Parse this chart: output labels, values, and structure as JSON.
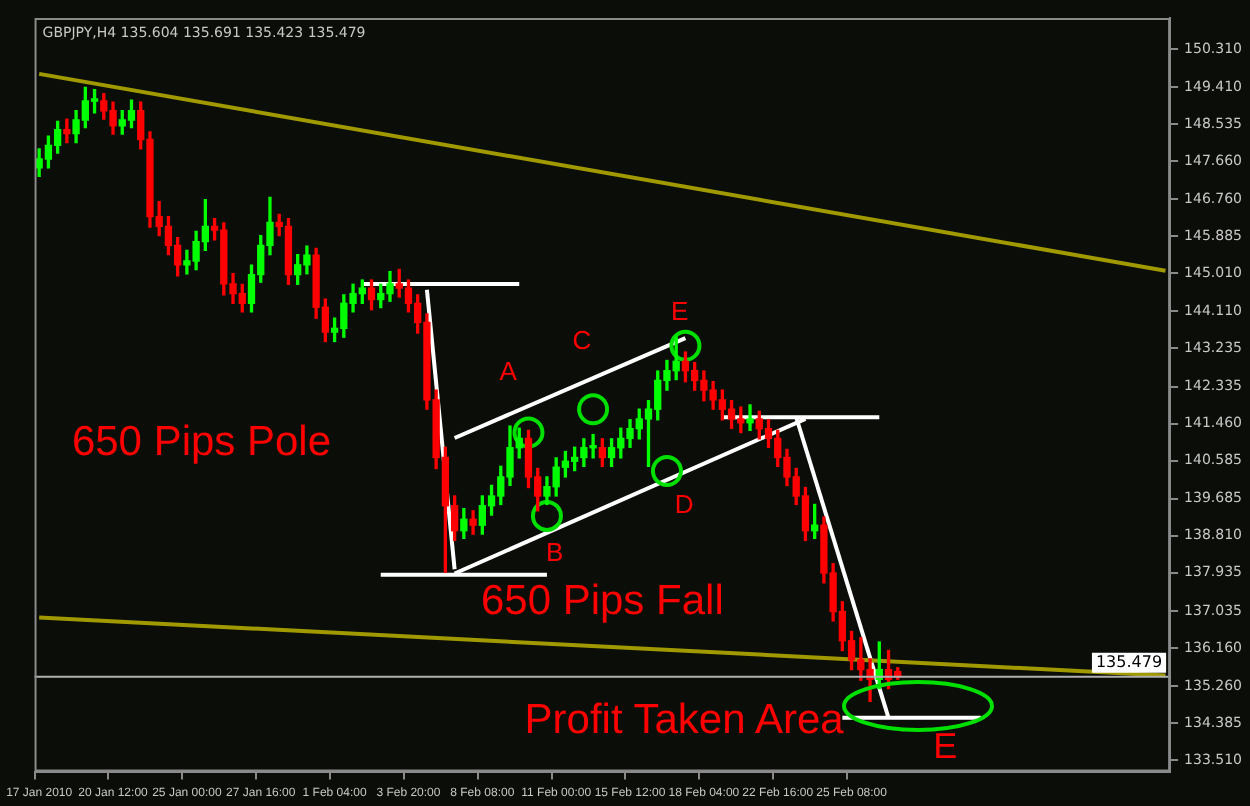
{
  "chart_data": {
    "type": "candlestick",
    "title": "GBPJPY,H4 135.604 135.691 135.423 135.479",
    "categories": [
      "17 Jan 2010",
      null,
      null,
      null,
      null,
      null,
      null,
      null,
      "20 Jan 12:00",
      null,
      null,
      null,
      null,
      null,
      null,
      null,
      "25 Jan 00:00",
      null,
      null,
      null,
      null,
      null,
      null,
      null,
      "27 Jan 16:00",
      null,
      null,
      null,
      null,
      null,
      null,
      null,
      "1 Feb 04:00",
      null,
      null,
      null,
      null,
      null,
      null,
      null,
      "3 Feb 20:00",
      null,
      null,
      null,
      null,
      null,
      null,
      null,
      "8 Feb 08:00",
      null,
      null,
      null,
      null,
      null,
      null,
      null,
      "11 Feb 00:00",
      null,
      null,
      null,
      null,
      null,
      null,
      null,
      "15 Feb 12:00",
      null,
      null,
      null,
      null,
      null,
      null,
      null,
      "18 Feb 04:00",
      null,
      null,
      null,
      null,
      null,
      null,
      null,
      "22 Feb 16:00",
      null,
      null,
      null,
      null,
      null,
      null,
      null,
      "25 Feb 08:00",
      null,
      null,
      null,
      null,
      null,
      null,
      null,
      null,
      null,
      null,
      null,
      null,
      null,
      null,
      null,
      null,
      null,
      null,
      null,
      null,
      null,
      null,
      null,
      null,
      null,
      null,
      null,
      null,
      null,
      null,
      null,
      null,
      null,
      null
    ],
    "ohlc": [
      [
        147.5,
        147.95,
        147.3,
        147.71
      ],
      [
        147.71,
        148.25,
        147.5,
        148.03
      ],
      [
        148.03,
        148.6,
        147.85,
        148.4
      ],
      [
        148.4,
        148.65,
        148.1,
        148.31
      ],
      [
        148.31,
        148.85,
        148.1,
        148.63
      ],
      [
        148.63,
        149.4,
        148.45,
        149.08
      ],
      [
        149.08,
        149.35,
        148.8,
        149.08
      ],
      [
        149.08,
        149.25,
        148.65,
        148.85
      ],
      [
        148.85,
        149.05,
        148.3,
        148.49
      ],
      [
        148.49,
        148.85,
        148.3,
        148.63
      ],
      [
        148.63,
        149.1,
        148.45,
        148.85
      ],
      [
        148.85,
        149.05,
        147.95,
        148.17
      ],
      [
        148.17,
        148.35,
        146.1,
        146.35
      ],
      [
        146.35,
        146.7,
        145.9,
        146.12
      ],
      [
        146.12,
        146.35,
        145.45,
        145.67
      ],
      [
        145.67,
        145.85,
        144.95,
        145.21
      ],
      [
        145.21,
        145.55,
        145.0,
        145.3
      ],
      [
        145.3,
        146.0,
        145.1,
        145.76
      ],
      [
        145.76,
        146.75,
        145.55,
        146.12
      ],
      [
        146.12,
        146.3,
        145.8,
        146.03
      ],
      [
        146.03,
        146.2,
        144.5,
        144.76
      ],
      [
        144.76,
        145.0,
        144.3,
        144.53
      ],
      [
        144.53,
        144.75,
        144.1,
        144.3
      ],
      [
        144.3,
        145.2,
        144.1,
        144.98
      ],
      [
        144.98,
        145.9,
        144.8,
        145.67
      ],
      [
        145.67,
        146.8,
        145.45,
        146.21
      ],
      [
        146.21,
        146.4,
        145.9,
        146.12
      ],
      [
        146.12,
        146.3,
        144.75,
        144.98
      ],
      [
        144.98,
        145.45,
        144.75,
        145.21
      ],
      [
        145.21,
        145.65,
        145.0,
        145.44
      ],
      [
        145.44,
        145.6,
        143.95,
        144.21
      ],
      [
        144.21,
        144.4,
        143.4,
        143.62
      ],
      [
        143.62,
        143.95,
        143.4,
        143.71
      ],
      [
        143.71,
        144.5,
        143.5,
        144.3
      ],
      [
        144.3,
        144.75,
        144.1,
        144.53
      ],
      [
        144.53,
        144.85,
        144.3,
        144.66
      ],
      [
        144.66,
        144.85,
        144.15,
        144.39
      ],
      [
        144.39,
        144.75,
        144.2,
        144.53
      ],
      [
        144.53,
        145.05,
        144.35,
        144.76
      ],
      [
        144.76,
        145.1,
        144.45,
        144.66
      ],
      [
        144.66,
        144.85,
        144.1,
        144.3
      ],
      [
        144.3,
        144.5,
        143.6,
        143.85
      ],
      [
        143.85,
        144.05,
        141.8,
        142.02
      ],
      [
        142.02,
        142.25,
        140.4,
        140.66
      ],
      [
        140.66,
        140.9,
        137.95,
        139.52
      ],
      [
        139.52,
        139.75,
        138.7,
        138.93
      ],
      [
        138.93,
        139.45,
        138.75,
        139.2
      ],
      [
        139.2,
        139.4,
        138.85,
        139.06
      ],
      [
        139.06,
        139.75,
        138.85,
        139.52
      ],
      [
        139.52,
        140.0,
        139.3,
        139.75
      ],
      [
        139.75,
        140.45,
        139.55,
        140.2
      ],
      [
        140.2,
        141.4,
        140.0,
        140.89
      ],
      [
        140.89,
        141.35,
        140.65,
        141.11
      ],
      [
        141.11,
        141.3,
        139.95,
        140.2
      ],
      [
        140.2,
        140.4,
        139.4,
        139.75
      ],
      [
        139.75,
        140.2,
        139.55,
        139.97
      ],
      [
        139.97,
        140.65,
        139.75,
        140.43
      ],
      [
        140.43,
        140.8,
        140.2,
        140.57
      ],
      [
        140.57,
        140.9,
        140.35,
        140.66
      ],
      [
        140.66,
        141.1,
        140.45,
        140.89
      ],
      [
        140.89,
        141.2,
        140.65,
        140.89
      ],
      [
        140.89,
        141.1,
        140.45,
        140.66
      ],
      [
        140.66,
        141.1,
        140.45,
        140.89
      ],
      [
        140.89,
        141.35,
        140.65,
        141.11
      ],
      [
        141.11,
        141.55,
        140.9,
        141.34
      ],
      [
        141.34,
        141.8,
        141.1,
        141.57
      ],
      [
        141.57,
        142.0,
        140.45,
        141.8
      ],
      [
        141.8,
        142.7,
        141.55,
        142.48
      ],
      [
        142.48,
        142.95,
        142.25,
        142.71
      ],
      [
        142.71,
        143.5,
        142.5,
        142.93
      ],
      [
        142.93,
        143.15,
        142.45,
        142.71
      ],
      [
        142.71,
        142.9,
        142.25,
        142.48
      ],
      [
        142.48,
        142.7,
        142.0,
        142.25
      ],
      [
        142.25,
        142.45,
        141.8,
        142.02
      ],
      [
        142.02,
        142.25,
        141.55,
        141.8
      ],
      [
        141.8,
        142.0,
        141.35,
        141.57
      ],
      [
        141.57,
        141.85,
        141.25,
        141.48
      ],
      [
        141.48,
        141.9,
        141.3,
        141.57
      ],
      [
        141.57,
        141.75,
        141.1,
        141.34
      ],
      [
        141.34,
        141.55,
        140.9,
        141.11
      ],
      [
        141.11,
        141.3,
        140.45,
        140.66
      ],
      [
        140.66,
        140.85,
        140.0,
        140.2
      ],
      [
        140.2,
        140.4,
        139.55,
        139.75
      ],
      [
        139.75,
        139.95,
        138.7,
        138.93
      ],
      [
        138.93,
        139.55,
        138.75,
        139.06
      ],
      [
        139.06,
        139.25,
        137.7,
        137.93
      ],
      [
        137.93,
        138.15,
        136.8,
        137.02
      ],
      [
        137.02,
        137.25,
        136.1,
        136.33
      ],
      [
        136.33,
        136.55,
        135.65,
        135.88
      ],
      [
        135.88,
        136.4,
        135.4,
        135.65
      ],
      [
        135.65,
        135.9,
        134.9,
        135.42
      ],
      [
        135.42,
        136.3,
        135.2,
        135.65
      ],
      [
        135.65,
        136.1,
        135.2,
        135.42
      ],
      [
        135.604,
        135.691,
        135.423,
        135.479
      ],
      null,
      null,
      null,
      null,
      null,
      null,
      null,
      null,
      null,
      null,
      null,
      null,
      null,
      null,
      null,
      null,
      null,
      null,
      null,
      null,
      null,
      null,
      null,
      null,
      null,
      null,
      null,
      null,
      null
    ],
    "colors": [
      "#00ff00",
      "#00ff00",
      "#00ff00",
      "#ff0000",
      "#00ff00",
      "#00ff00",
      "#00ff00",
      "#ff0000",
      "#ff0000",
      "#00ff00",
      "#00ff00",
      "#ff0000",
      "#ff0000",
      "#ff0000",
      "#ff0000",
      "#ff0000",
      "#00ff00",
      "#00ff00",
      "#00ff00",
      "#ff0000",
      "#ff0000",
      "#ff0000",
      "#ff0000",
      "#00ff00",
      "#00ff00",
      "#00ff00",
      "#ff0000",
      "#ff0000",
      "#00ff00",
      "#00ff00",
      "#ff0000",
      "#ff0000",
      "#00ff00",
      "#00ff00",
      "#00ff00",
      "#00ff00",
      "#ff0000",
      "#00ff00",
      "#00ff00",
      "#ff0000",
      "#ff0000",
      "#ff0000",
      "#ff0000",
      "#ff0000",
      "#ff0000",
      "#ff0000",
      "#00ff00",
      "#ff0000",
      "#00ff00",
      "#00ff00",
      "#00ff00",
      "#00ff00",
      "#00ff00",
      "#ff0000",
      "#ff0000",
      "#00ff00",
      "#00ff00",
      "#00ff00",
      "#00ff00",
      "#00ff00",
      "#00ff00",
      "#ff0000",
      "#00ff00",
      "#00ff00",
      "#00ff00",
      "#00ff00",
      "#00ff00",
      "#00ff00",
      "#00ff00",
      "#00ff00",
      "#ff0000",
      "#ff0000",
      "#ff0000",
      "#ff0000",
      "#ff0000",
      "#ff0000",
      "#ff0000",
      "#00ff00",
      "#ff0000",
      "#ff0000",
      "#ff0000",
      "#ff0000",
      "#ff0000",
      "#ff0000",
      "#00ff00",
      "#ff0000",
      "#ff0000",
      "#ff0000",
      "#ff0000",
      "#ff0000",
      "#ff0000",
      "#00ff00",
      "#ff0000",
      "#ff0000",
      null,
      null,
      null,
      null,
      null,
      null,
      null,
      null,
      null,
      null,
      null,
      null,
      null,
      null,
      null,
      null,
      null,
      null,
      null,
      null,
      null,
      null,
      null,
      null,
      null,
      null,
      null,
      null,
      null
    ],
    "series": [
      {
        "type": "line",
        "color": "#a09a00",
        "values": [
          149.72,
          null,
          null,
          null,
          null,
          null,
          null,
          null,
          null,
          null,
          null,
          null,
          null,
          null,
          null,
          null,
          null,
          null,
          null,
          null,
          null,
          null,
          null,
          null,
          null,
          null,
          null,
          null,
          null,
          null,
          null,
          null,
          null,
          null,
          null,
          null,
          null,
          null,
          null,
          null,
          null,
          null,
          null,
          null,
          null,
          null,
          null,
          null,
          null,
          null,
          null,
          null,
          null,
          null,
          null,
          null,
          null,
          null,
          null,
          null,
          null,
          null,
          null,
          null,
          null,
          null,
          null,
          null,
          null,
          null,
          null,
          null,
          null,
          null,
          null,
          null,
          null,
          null,
          null,
          null,
          null,
          null,
          null,
          null,
          null,
          null,
          null,
          null,
          null,
          null,
          null,
          null,
          null,
          null,
          null,
          null,
          null,
          null,
          null,
          null,
          null,
          null,
          null,
          null,
          null,
          null,
          null,
          null,
          null,
          null,
          null,
          null,
          null,
          null,
          null,
          null,
          null,
          null,
          null,
          null,
          null,
          null,
          145.07
        ]
      },
      {
        "type": "line",
        "color": "#a09a00",
        "values": [
          136.88,
          null,
          null,
          null,
          null,
          null,
          null,
          null,
          null,
          null,
          null,
          null,
          null,
          null,
          null,
          null,
          null,
          null,
          null,
          null,
          null,
          null,
          null,
          null,
          null,
          null,
          null,
          null,
          null,
          null,
          null,
          null,
          null,
          null,
          null,
          null,
          null,
          null,
          null,
          null,
          null,
          null,
          null,
          null,
          null,
          null,
          null,
          null,
          null,
          null,
          null,
          null,
          null,
          null,
          null,
          null,
          null,
          null,
          null,
          null,
          null,
          null,
          null,
          null,
          null,
          null,
          null,
          null,
          null,
          null,
          null,
          null,
          null,
          null,
          null,
          null,
          null,
          null,
          null,
          null,
          null,
          null,
          null,
          null,
          null,
          null,
          null,
          null,
          null,
          null,
          null,
          null,
          null,
          null,
          null,
          null,
          null,
          null,
          null,
          null,
          null,
          null,
          null,
          null,
          null,
          null,
          null,
          null,
          null,
          null,
          null,
          null,
          null,
          null,
          null,
          null,
          null,
          null,
          null,
          null,
          null,
          null,
          135.51
        ]
      },
      {
        "type": "line",
        "color": "#ffffff",
        "values": [
          null,
          null,
          null,
          null,
          null,
          null,
          null,
          null,
          null,
          null,
          null,
          null,
          null,
          null,
          null,
          null,
          null,
          null,
          null,
          null,
          null,
          null,
          null,
          null,
          null,
          null,
          null,
          null,
          null,
          null,
          null,
          null,
          null,
          null,
          null,
          144.76,
          null,
          null,
          null,
          null,
          null,
          null,
          null,
          null,
          null,
          null,
          null,
          null,
          null,
          null,
          null,
          null,
          144.76,
          null,
          null,
          null,
          null,
          null,
          null,
          null,
          null,
          null,
          null,
          null,
          null,
          null,
          null,
          null,
          null,
          null,
          null,
          null,
          null,
          null,
          null,
          null,
          null,
          null,
          null,
          null,
          null,
          null,
          null,
          null,
          null,
          null,
          null,
          null,
          null,
          null,
          null,
          null,
          null,
          null,
          null,
          null,
          null,
          null,
          null,
          null,
          null,
          null,
          null,
          null,
          null,
          null,
          null,
          null,
          null,
          null,
          null,
          null,
          null,
          null,
          null,
          null,
          null,
          null,
          null,
          null,
          null,
          null,
          null
        ]
      },
      {
        "type": "line",
        "color": "#ffffff",
        "values": [
          null,
          null,
          null,
          null,
          null,
          null,
          null,
          null,
          null,
          null,
          null,
          null,
          null,
          null,
          null,
          null,
          null,
          null,
          null,
          null,
          null,
          null,
          null,
          null,
          null,
          null,
          null,
          null,
          null,
          null,
          null,
          null,
          null,
          null,
          null,
          null,
          null,
          null,
          null,
          null,
          null,
          null,
          144.62,
          null,
          null,
          138.02,
          null,
          null,
          null,
          null,
          null,
          null,
          null,
          null,
          null,
          null,
          null,
          null,
          null,
          null,
          null,
          null,
          null,
          null,
          null,
          null,
          null,
          null,
          null,
          null,
          null,
          null,
          null,
          null,
          null,
          null,
          null,
          null,
          null,
          null,
          null,
          null,
          null,
          null,
          null,
          null,
          null,
          null,
          null,
          null,
          null,
          null,
          null,
          null,
          null,
          null,
          null,
          null,
          null,
          null,
          null,
          null,
          null,
          null,
          null,
          null,
          null,
          null,
          null,
          null,
          null,
          null,
          null,
          null,
          null,
          null,
          null,
          null,
          null,
          null,
          null,
          null,
          null
        ]
      },
      {
        "type": "line",
        "color": "#ffffff",
        "values": [
          null,
          null,
          null,
          null,
          null,
          null,
          null,
          null,
          null,
          null,
          null,
          null,
          null,
          null,
          null,
          null,
          null,
          null,
          null,
          null,
          null,
          null,
          null,
          null,
          null,
          null,
          null,
          null,
          null,
          null,
          null,
          null,
          null,
          null,
          null,
          null,
          null,
          137.89,
          null,
          null,
          null,
          null,
          null,
          null,
          null,
          null,
          null,
          null,
          null,
          null,
          null,
          null,
          null,
          null,
          null,
          137.89,
          null,
          null,
          null,
          null,
          null,
          null,
          null,
          null,
          null,
          null,
          null,
          null,
          null,
          null,
          null,
          null,
          null,
          null,
          null,
          null,
          null,
          null,
          null,
          null,
          null,
          null,
          null,
          null,
          null,
          null,
          null,
          null,
          null,
          null,
          null,
          null,
          null,
          null,
          null,
          null,
          null,
          null,
          null,
          null,
          null,
          null,
          null,
          null,
          null,
          null,
          null,
          null,
          null,
          null,
          null,
          null,
          null,
          null,
          null,
          null,
          null,
          null,
          null,
          null,
          null,
          null,
          null
        ]
      },
      {
        "type": "line",
        "color": "#ffffff",
        "values": [
          null,
          null,
          null,
          null,
          null,
          null,
          null,
          null,
          null,
          null,
          null,
          null,
          null,
          null,
          null,
          null,
          null,
          null,
          null,
          null,
          null,
          null,
          null,
          null,
          null,
          null,
          null,
          null,
          null,
          null,
          null,
          null,
          null,
          null,
          null,
          null,
          null,
          null,
          null,
          null,
          null,
          null,
          null,
          null,
          null,
          137.92,
          null,
          null,
          null,
          null,
          null,
          null,
          null,
          null,
          null,
          null,
          null,
          null,
          null,
          null,
          null,
          null,
          null,
          null,
          null,
          null,
          null,
          null,
          null,
          null,
          null,
          null,
          null,
          null,
          null,
          null,
          null,
          null,
          null,
          null,
          null,
          null,
          null,
          141.57,
          null,
          null,
          null,
          null,
          null,
          null,
          null,
          null,
          null,
          null,
          null,
          null,
          null,
          null,
          null,
          null,
          null,
          null,
          null,
          null,
          null,
          null,
          null,
          null,
          null,
          null,
          null,
          null,
          null,
          null,
          null,
          null,
          null,
          null,
          null,
          null,
          null,
          null,
          null
        ]
      },
      {
        "type": "line",
        "color": "#ffffff",
        "values": [
          null,
          null,
          null,
          null,
          null,
          null,
          null,
          null,
          null,
          null,
          null,
          null,
          null,
          null,
          null,
          null,
          null,
          null,
          null,
          null,
          null,
          null,
          null,
          null,
          null,
          null,
          null,
          null,
          null,
          null,
          null,
          null,
          null,
          null,
          null,
          null,
          null,
          null,
          null,
          null,
          null,
          null,
          null,
          null,
          null,
          141.12,
          null,
          null,
          null,
          null,
          null,
          null,
          null,
          null,
          null,
          null,
          null,
          null,
          null,
          null,
          null,
          null,
          null,
          null,
          null,
          null,
          null,
          null,
          null,
          null,
          143.48,
          null,
          null,
          null,
          null,
          null,
          null,
          null,
          null,
          null,
          null,
          null,
          null,
          null,
          null,
          null,
          null,
          null,
          null,
          null,
          null,
          null,
          null,
          null,
          null,
          null,
          null,
          null,
          null,
          null,
          null,
          null,
          null,
          null,
          null,
          null,
          null,
          null,
          null,
          null,
          null,
          null,
          null,
          null,
          null,
          null,
          null,
          null,
          null,
          null,
          null,
          null,
          null
        ]
      },
      {
        "type": "line",
        "color": "#ffffff",
        "values": [
          null,
          null,
          null,
          null,
          null,
          null,
          null,
          null,
          null,
          null,
          null,
          null,
          null,
          null,
          null,
          null,
          null,
          null,
          null,
          null,
          null,
          null,
          null,
          null,
          null,
          null,
          null,
          null,
          null,
          null,
          null,
          null,
          null,
          null,
          null,
          null,
          null,
          null,
          null,
          null,
          null,
          null,
          null,
          null,
          null,
          null,
          null,
          null,
          null,
          null,
          null,
          null,
          null,
          null,
          null,
          null,
          null,
          null,
          null,
          null,
          null,
          null,
          null,
          null,
          null,
          null,
          null,
          null,
          null,
          null,
          null,
          null,
          null,
          null,
          141.61,
          null,
          null,
          null,
          null,
          null,
          null,
          null,
          null,
          null,
          null,
          null,
          null,
          null,
          null,
          null,
          null,
          141.61,
          null,
          null,
          null,
          null,
          null,
          null,
          null,
          null,
          null,
          null,
          null,
          null,
          null,
          null,
          null,
          null,
          null,
          null,
          null,
          null,
          null,
          null,
          null,
          null,
          null,
          null,
          null,
          null,
          null,
          null,
          null
        ]
      },
      {
        "type": "line",
        "color": "#ffffff",
        "values": [
          null,
          null,
          null,
          null,
          null,
          null,
          null,
          null,
          null,
          null,
          null,
          null,
          null,
          null,
          null,
          null,
          null,
          null,
          null,
          null,
          null,
          null,
          null,
          null,
          null,
          null,
          null,
          null,
          null,
          null,
          null,
          null,
          null,
          null,
          null,
          null,
          null,
          null,
          null,
          null,
          null,
          null,
          null,
          null,
          null,
          null,
          null,
          null,
          null,
          null,
          null,
          null,
          null,
          null,
          null,
          null,
          null,
          null,
          null,
          null,
          null,
          null,
          null,
          null,
          null,
          null,
          null,
          null,
          null,
          null,
          null,
          null,
          null,
          null,
          null,
          null,
          null,
          null,
          null,
          null,
          null,
          null,
          141.61,
          null,
          null,
          null,
          null,
          null,
          null,
          null,
          null,
          null,
          134.51,
          null,
          null,
          null,
          null,
          null,
          null,
          null,
          null,
          null,
          null,
          null,
          null,
          null,
          null,
          null,
          null,
          null,
          null,
          null,
          null,
          null,
          null,
          null,
          null,
          null,
          null,
          null,
          null,
          null,
          null
        ]
      },
      {
        "type": "line",
        "color": "#ffffff",
        "values": [
          null,
          null,
          null,
          null,
          null,
          null,
          null,
          null,
          null,
          null,
          null,
          null,
          null,
          null,
          null,
          null,
          null,
          null,
          null,
          null,
          null,
          null,
          null,
          null,
          null,
          null,
          null,
          null,
          null,
          null,
          null,
          null,
          null,
          null,
          null,
          null,
          null,
          null,
          null,
          null,
          null,
          null,
          null,
          null,
          null,
          null,
          null,
          null,
          null,
          null,
          null,
          null,
          null,
          null,
          null,
          null,
          null,
          null,
          null,
          null,
          null,
          null,
          null,
          null,
          null,
          null,
          null,
          null,
          null,
          null,
          null,
          null,
          null,
          null,
          null,
          null,
          null,
          null,
          null,
          null,
          null,
          null,
          null,
          null,
          null,
          null,
          null,
          134.51,
          null,
          null,
          null,
          null,
          null,
          null,
          null,
          null,
          null,
          null,
          null,
          null,
          null,
          null,
          134.51,
          null,
          null,
          null,
          null,
          null,
          null,
          null,
          null,
          null,
          null,
          null,
          null,
          null,
          null,
          null,
          null,
          null,
          null,
          null,
          null
        ]
      },
      {
        "type": "scatter",
        "color": "#00e000",
        "marker": "circle",
        "values": [
          null,
          null,
          null,
          null,
          null,
          null,
          null,
          null,
          null,
          null,
          null,
          null,
          null,
          null,
          null,
          null,
          null,
          null,
          null,
          null,
          null,
          null,
          null,
          null,
          null,
          null,
          null,
          null,
          null,
          null,
          null,
          null,
          null,
          null,
          null,
          null,
          null,
          null,
          null,
          null,
          null,
          null,
          null,
          null,
          null,
          null,
          null,
          null,
          null,
          null,
          null,
          null,
          null,
          141.25,
          null,
          139.28,
          null,
          null,
          null,
          null,
          141.8,
          null,
          null,
          null,
          null,
          null,
          null,
          null,
          140.34,
          null,
          143.3,
          null,
          null,
          null,
          null,
          null,
          null,
          null,
          null,
          null,
          null,
          null,
          null,
          null,
          null,
          null,
          null,
          null,
          null,
          null,
          null,
          null,
          null,
          null,
          null,
          null,
          null,
          null,
          null,
          null,
          null,
          null,
          null,
          null,
          null,
          null,
          null,
          null,
          null,
          null,
          null,
          null,
          null,
          null,
          null,
          null,
          null,
          null,
          null,
          null,
          null,
          null,
          null
        ]
      }
    ],
    "ylim": [
      133.24,
      151.04
    ],
    "yticks": [
      {
        "value": 133.51,
        "label": "133.510"
      },
      {
        "value": 134.385,
        "label": "134.385"
      },
      {
        "value": 135.26,
        "label": "135.260"
      },
      {
        "value": 136.16,
        "label": "136.160"
      },
      {
        "value": 137.035,
        "label": "137.035"
      },
      {
        "value": 137.935,
        "label": "137.935"
      },
      {
        "value": 138.81,
        "label": "138.810"
      },
      {
        "value": 139.685,
        "label": "139.685"
      },
      {
        "value": 140.585,
        "label": "140.585"
      },
      {
        "value": 141.46,
        "label": "141.460"
      },
      {
        "value": 142.335,
        "label": "142.335"
      },
      {
        "value": 143.235,
        "label": "143.235"
      },
      {
        "value": 144.11,
        "label": "144.110"
      },
      {
        "value": 145.01,
        "label": "145.010"
      },
      {
        "value": 145.885,
        "label": "145.885"
      },
      {
        "value": 146.76,
        "label": "146.760"
      },
      {
        "value": 147.66,
        "label": "147.660"
      },
      {
        "value": 148.535,
        "label": "148.535"
      },
      {
        "value": 149.41,
        "label": "149.410"
      },
      {
        "value": 150.31,
        "label": "150.310"
      }
    ],
    "ref_lines": [
      {
        "axis": "y",
        "value": 135.479,
        "label": "135.479",
        "color": "#b0b0b0"
      }
    ],
    "annotations": [
      "650 Pips Pole",
      "650 Pips Fall",
      "Profit Taken Area",
      "A",
      "B",
      "C",
      "D",
      "E",
      "E"
    ]
  }
}
